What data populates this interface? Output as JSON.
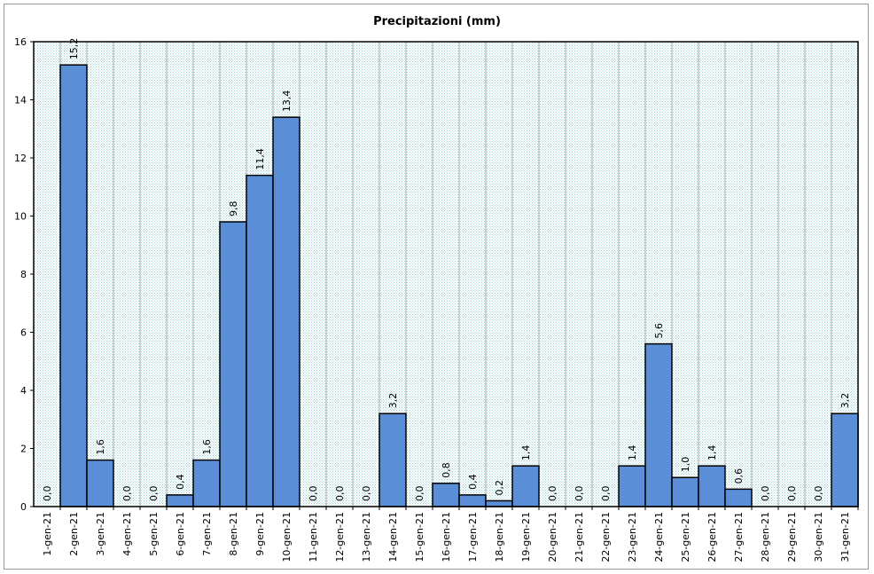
{
  "chart_data": {
    "type": "bar",
    "title": "Precipitazioni (mm)",
    "xlabel": "",
    "ylabel": "",
    "ylim": [
      0,
      16
    ],
    "yticks": [
      "0",
      "2",
      "4",
      "6",
      "8",
      "10",
      "12",
      "14",
      "16"
    ],
    "grid": "vertical",
    "legend": "none",
    "colors": {
      "bar": "#5a8fd8",
      "plot_bg": "#dceef0",
      "grid": "#9aa0a4",
      "border": "#000000"
    },
    "categories": [
      "1-gen-21",
      "2-gen-21",
      "3-gen-21",
      "4-gen-21",
      "5-gen-21",
      "6-gen-21",
      "7-gen-21",
      "8-gen-21",
      "9-gen-21",
      "10-gen-21",
      "11-gen-21",
      "12-gen-21",
      "13-gen-21",
      "14-gen-21",
      "15-gen-21",
      "16-gen-21",
      "17-gen-21",
      "18-gen-21",
      "19-gen-21",
      "20-gen-21",
      "21-gen-21",
      "22-gen-21",
      "23-gen-21",
      "24-gen-21",
      "25-gen-21",
      "26-gen-21",
      "27-gen-21",
      "28-gen-21",
      "29-gen-21",
      "30-gen-21",
      "31-gen-21"
    ],
    "values": [
      0.0,
      15.2,
      1.6,
      0.0,
      0.0,
      0.4,
      1.6,
      9.8,
      11.4,
      13.4,
      0.0,
      0.0,
      0.0,
      3.2,
      0.0,
      0.8,
      0.4,
      0.2,
      1.4,
      0.0,
      0.0,
      0.0,
      1.4,
      5.6,
      1.0,
      1.4,
      0.6,
      0.0,
      0.0,
      0.0,
      3.2
    ],
    "value_labels": [
      "0,0",
      "15,2",
      "1,6",
      "0,0",
      "0,0",
      "0,4",
      "1,6",
      "9,8",
      "11,4",
      "13,4",
      "0,0",
      "0,0",
      "0,0",
      "3,2",
      "0,0",
      "0,8",
      "0,4",
      "0,2",
      "1,4",
      "0,0",
      "0,0",
      "0,0",
      "1,4",
      "5,6",
      "1,0",
      "1,4",
      "0,6",
      "0,0",
      "0,0",
      "0,0",
      "3,2"
    ]
  }
}
